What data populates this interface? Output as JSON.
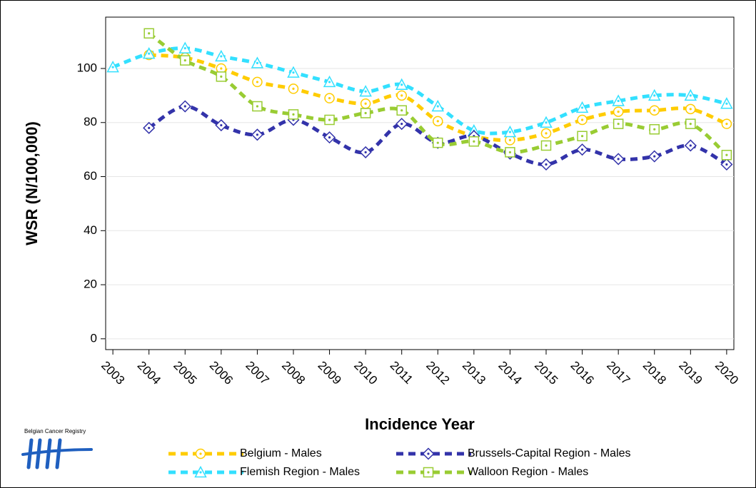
{
  "chart_data": {
    "type": "line",
    "logo_text": "Belgian Cancer Registry",
    "x_label": "Incidence Year",
    "y_label": "WSR (N/100,000)",
    "x": [
      2003,
      2004,
      2005,
      2006,
      2007,
      2008,
      2009,
      2010,
      2011,
      2012,
      2013,
      2014,
      2015,
      2016,
      2017,
      2018,
      2019,
      2020
    ],
    "xlim": [
      2002.8,
      2020.2
    ],
    "xticks": [
      2003,
      2004,
      2005,
      2006,
      2007,
      2008,
      2009,
      2010,
      2011,
      2012,
      2013,
      2014,
      2015,
      2016,
      2017,
      2018,
      2019,
      2020
    ],
    "ylim": [
      -4,
      119
    ],
    "yticks": [
      0,
      20,
      40,
      60,
      80,
      100
    ],
    "grid": true,
    "series": [
      {
        "name": "Belgium - Males",
        "color": "#ffcc00",
        "marker": "circle",
        "values": [
          null,
          105,
          104,
          100,
          95,
          92.5,
          89,
          87,
          90,
          80.5,
          75,
          73.5,
          76,
          81,
          84,
          84.5,
          85,
          79.5
        ]
      },
      {
        "name": "Flemish Region - Males",
        "color": "#33e0ff",
        "marker": "triangle",
        "values": [
          100.5,
          105.5,
          107.5,
          104.5,
          102,
          98.5,
          95,
          91.5,
          94,
          86,
          77,
          76.5,
          80,
          85.5,
          88,
          90,
          90,
          87
        ]
      },
      {
        "name": "Brussels-Capital Region - Males",
        "color": "#3333aa",
        "marker": "diamond",
        "values": [
          null,
          78,
          86,
          79,
          75.5,
          81,
          74.5,
          69,
          79.5,
          72.5,
          75,
          68.5,
          64.5,
          70,
          66.5,
          67.5,
          71.5,
          64.5
        ]
      },
      {
        "name": "Walloon Region - Males",
        "color": "#99cc33",
        "marker": "square",
        "values": [
          null,
          113,
          103,
          97,
          86,
          83,
          81,
          83.5,
          84.5,
          72.5,
          73,
          69,
          71.5,
          75,
          79.5,
          77.5,
          79.5,
          68
        ]
      }
    ]
  }
}
